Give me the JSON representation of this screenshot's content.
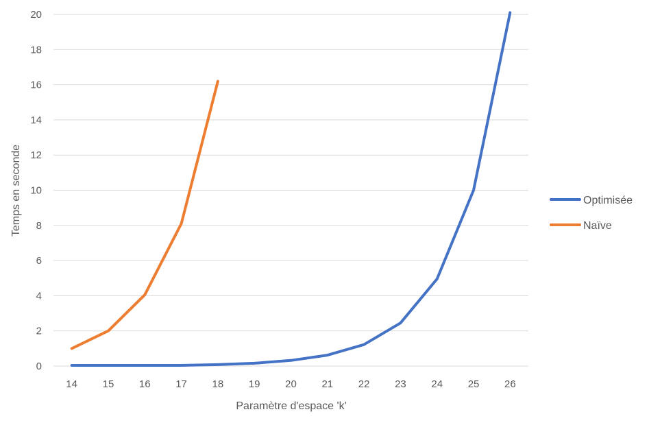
{
  "chart_data": {
    "type": "line",
    "title": "",
    "xlabel": "Paramètre d'espace 'k'",
    "ylabel": "Temps en seconde",
    "categories": [
      "14",
      "15",
      "16",
      "17",
      "18",
      "19",
      "20",
      "21",
      "22",
      "23",
      "24",
      "25",
      "26"
    ],
    "ylim": [
      0,
      20
    ],
    "yticks": [
      "0",
      "2",
      "4",
      "6",
      "8",
      "10",
      "12",
      "14",
      "16",
      "18",
      "20"
    ],
    "grid": true,
    "legend_position": "right",
    "series": [
      {
        "name": "Optimisée",
        "color": "#4472C4",
        "values": [
          0.04,
          0.04,
          0.04,
          0.04,
          0.08,
          0.16,
          0.32,
          0.62,
          1.22,
          2.45,
          4.95,
          10.0,
          20.1
        ]
      },
      {
        "name": "Naïve",
        "color": "#ED7D31",
        "values": [
          1.0,
          2.0,
          4.05,
          8.1,
          16.2,
          null,
          null,
          null,
          null,
          null,
          null,
          null,
          null
        ]
      }
    ]
  }
}
